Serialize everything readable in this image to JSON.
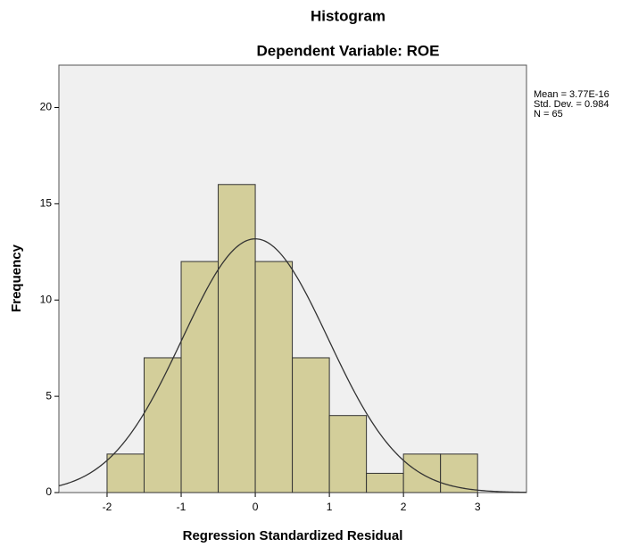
{
  "chart_data": {
    "type": "histogram",
    "title": "Histogram",
    "subtitle": "Dependent Variable: ROE",
    "x_label": "Regression Standardized Residual",
    "y_label": "Frequency",
    "bins": [
      -2,
      -1.5,
      -1,
      -0.5,
      0,
      0.5,
      1,
      1.5,
      2,
      2.5,
      3
    ],
    "values": [
      2,
      7,
      12,
      16,
      12,
      7,
      4,
      1,
      2,
      2
    ],
    "color": "#d3ce9a",
    "xlim": [
      -2.65,
      3.66
    ],
    "xticks": [
      -2,
      -1,
      0,
      1,
      2,
      3
    ],
    "ylim": [
      0,
      22.2
    ],
    "yticks": [
      0,
      5,
      10,
      15,
      20
    ],
    "stats": [
      {
        "value": 3.77e-16,
        "label": "Mean = 3.77E-16"
      },
      {
        "value": 0.984,
        "label": "Std. Dev. = 0.984"
      },
      {
        "value": 65,
        "label": "N = 65"
      }
    ]
  }
}
